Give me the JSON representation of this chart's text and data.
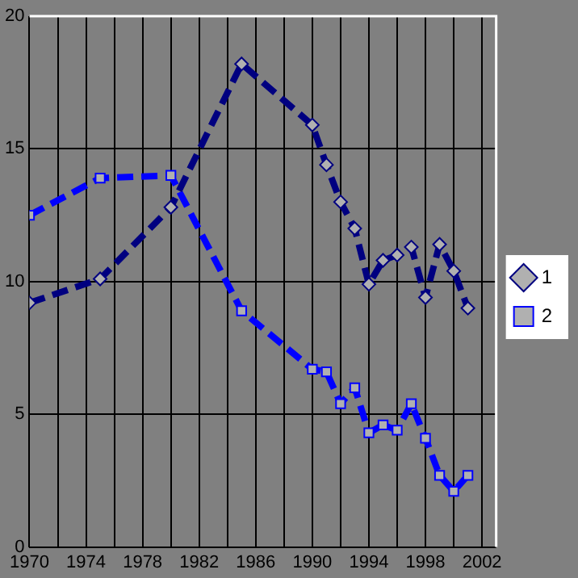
{
  "chart_data": {
    "type": "line",
    "x": [
      1970,
      1975,
      1980,
      1985,
      1990,
      1991,
      1992,
      1993,
      1994,
      1995,
      1996,
      1997,
      1998,
      1999,
      2000,
      2001
    ],
    "series": [
      {
        "name": "1",
        "color": "#000080",
        "marker": "diamond",
        "values": [
          9.2,
          10.1,
          12.8,
          18.2,
          15.9,
          14.4,
          13.0,
          12.0,
          9.9,
          10.8,
          11.0,
          11.3,
          9.4,
          11.4,
          10.4,
          9.0
        ]
      },
      {
        "name": "2",
        "color": "#0000ff",
        "marker": "square",
        "values": [
          12.5,
          13.9,
          14.0,
          8.9,
          6.7,
          6.6,
          5.4,
          6.0,
          4.3,
          4.6,
          4.4,
          5.4,
          4.1,
          2.7,
          2.1,
          2.7
        ]
      }
    ],
    "xlim": [
      1970,
      2003
    ],
    "xticks": [
      1970,
      {
        "value": 1972,
        "label": null
      },
      1974,
      {
        "value": 1976,
        "label": null
      },
      1978,
      {
        "value": 1980,
        "label": null
      },
      1982,
      {
        "value": 1984,
        "label": null
      },
      1986,
      {
        "value": 1988,
        "label": null
      },
      1990,
      {
        "value": 1992,
        "label": null
      },
      1994,
      {
        "value": 1996,
        "label": null
      },
      1998,
      {
        "value": 2000,
        "label": null
      },
      2002
    ],
    "ylim": [
      0,
      20
    ],
    "yticks": [
      0,
      5,
      10,
      15,
      20
    ],
    "grid": true,
    "legend": "right",
    "line_style": "dashed"
  }
}
